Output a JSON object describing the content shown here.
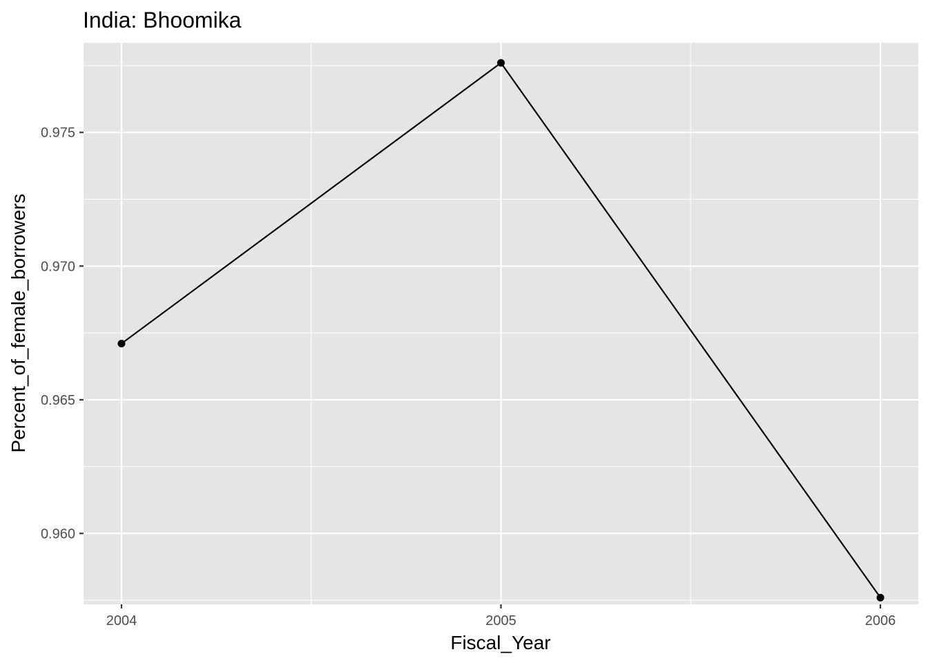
{
  "chart_data": {
    "type": "line",
    "title": "India:  Bhoomika",
    "xlabel": "Fiscal_Year",
    "ylabel": "Percent_of_female_borrowers",
    "x": [
      2004,
      2005,
      2006
    ],
    "series": [
      {
        "values": [
          0.9671,
          0.9776,
          0.9576
        ]
      }
    ],
    "xlim": [
      2003.9,
      2006.1
    ],
    "ylim": [
      0.95735,
      0.97835
    ],
    "x_ticks": [
      2004,
      2005,
      2006
    ],
    "x_tick_labels": [
      "2004",
      "2005",
      "2006"
    ],
    "y_ticks": [
      0.96,
      0.965,
      0.97,
      0.975
    ],
    "y_tick_labels": [
      "0.960",
      "0.965",
      "0.970",
      "0.975"
    ],
    "grid": true,
    "legend": "none",
    "colors": {
      "panel_background": "#e5e5e5",
      "grid_line": "#ffffff",
      "series_line": "#000000",
      "tick_text": "#4d4d4d"
    }
  }
}
